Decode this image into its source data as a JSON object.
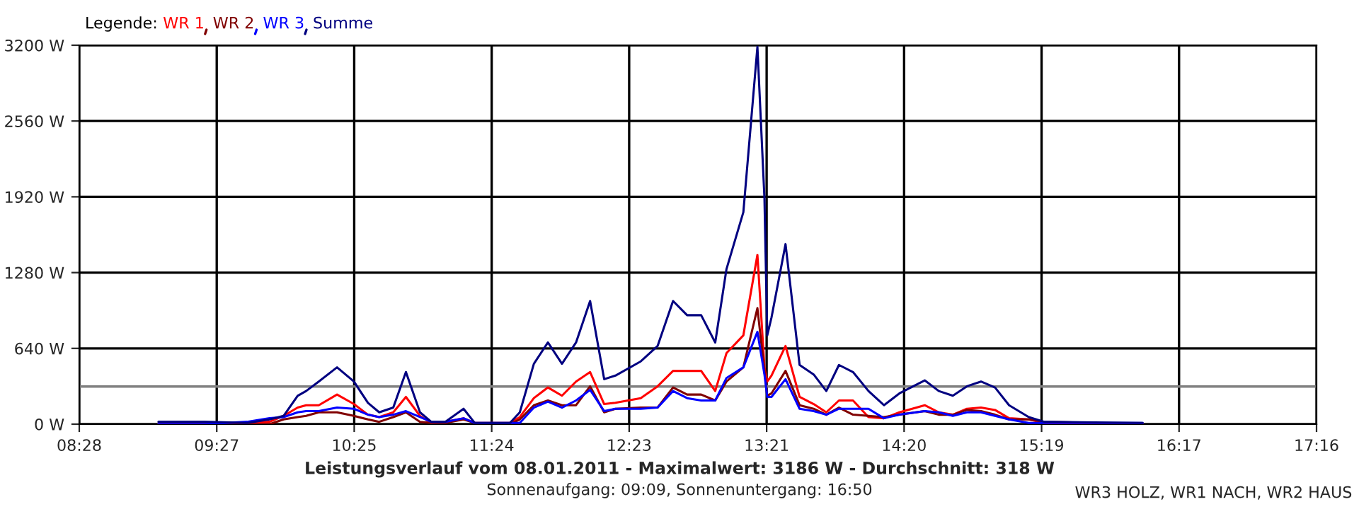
{
  "chart_data": {
    "type": "line",
    "title": "Leistungsverlauf vom 08.01.2011 - Maximalwert: 3186 W - Durchschnitt: 318 W",
    "subtitle": "Sonnenaufgang: 09:09, Sonnenuntergang: 16:50",
    "legend_title": "Legende:",
    "annotations": [
      "WR3 HOLZ, WR1 NACH, WR2 HAUS"
    ],
    "x": [
      9.03,
      9.36,
      9.66,
      9.82,
      9.92,
      10.02,
      10.08,
      10.17,
      10.3,
      10.42,
      10.52,
      10.6,
      10.7,
      10.79,
      10.89,
      10.97,
      11.07,
      11.2,
      11.28,
      11.53,
      11.6,
      11.7,
      11.8,
      11.9,
      12.0,
      12.1,
      12.2,
      12.28,
      12.46,
      12.58,
      12.69,
      12.79,
      12.89,
      12.99,
      13.07,
      13.19,
      13.29,
      13.34,
      13.36,
      13.39,
      13.49,
      13.59,
      13.69,
      13.78,
      13.87,
      13.97,
      14.08,
      14.19,
      14.3,
      14.48,
      14.58,
      14.68,
      14.78,
      14.88,
      14.98,
      15.08,
      15.22,
      15.33,
      16.03
    ],
    "series": [
      {
        "name": "WR 1",
        "color": "#ff0000",
        "values": [
          0,
          0,
          10,
          20,
          70,
          140,
          160,
          160,
          250,
          170,
          80,
          60,
          100,
          230,
          70,
          10,
          20,
          50,
          10,
          10,
          60,
          220,
          310,
          240,
          360,
          440,
          170,
          180,
          220,
          320,
          450,
          450,
          450,
          280,
          600,
          750,
          1430,
          480,
          360,
          410,
          660,
          230,
          170,
          100,
          200,
          200,
          60,
          50,
          100,
          160,
          100,
          80,
          130,
          140,
          120,
          50,
          40,
          10,
          0
        ]
      },
      {
        "name": "WR 2",
        "color": "#800000",
        "values": [
          0,
          0,
          0,
          0,
          40,
          60,
          70,
          100,
          100,
          70,
          40,
          20,
          60,
          100,
          20,
          10,
          10,
          40,
          10,
          0,
          40,
          160,
          200,
          160,
          160,
          320,
          100,
          130,
          140,
          140,
          310,
          250,
          250,
          200,
          360,
          480,
          980,
          450,
          240,
          260,
          450,
          160,
          130,
          80,
          140,
          80,
          70,
          60,
          80,
          110,
          80,
          80,
          120,
          110,
          80,
          40,
          40,
          20,
          0
        ]
      },
      {
        "name": "WR 3",
        "color": "#0000ff",
        "values": [
          0,
          0,
          20,
          50,
          60,
          100,
          110,
          110,
          140,
          130,
          80,
          60,
          80,
          110,
          60,
          20,
          20,
          50,
          10,
          10,
          10,
          140,
          190,
          140,
          200,
          290,
          110,
          130,
          130,
          140,
          280,
          220,
          200,
          200,
          390,
          480,
          780,
          420,
          230,
          230,
          380,
          130,
          110,
          80,
          130,
          130,
          130,
          50,
          80,
          110,
          100,
          70,
          100,
          100,
          70,
          40,
          10,
          10,
          10
        ]
      },
      {
        "name": "Summe",
        "color": "#000080",
        "values": [
          20,
          20,
          10,
          40,
          70,
          240,
          280,
          360,
          480,
          360,
          180,
          100,
          140,
          440,
          100,
          20,
          20,
          130,
          10,
          10,
          100,
          510,
          690,
          510,
          690,
          1040,
          380,
          410,
          530,
          660,
          1040,
          920,
          920,
          690,
          1310,
          1790,
          3186,
          1910,
          750,
          900,
          1520,
          500,
          420,
          280,
          500,
          440,
          280,
          160,
          260,
          370,
          280,
          240,
          320,
          360,
          310,
          160,
          60,
          20,
          10
        ]
      }
    ],
    "xlim": [
      8.4667,
      17.2667
    ],
    "xticks": [
      {
        "value": 8.4667,
        "label": "08:28"
      },
      {
        "value": 9.4444,
        "label": "09:27"
      },
      {
        "value": 10.4222,
        "label": "10:25"
      },
      {
        "value": 11.4,
        "label": "11:24"
      },
      {
        "value": 12.3778,
        "label": "12:23"
      },
      {
        "value": 13.3556,
        "label": "13:21"
      },
      {
        "value": 14.3333,
        "label": "14:20"
      },
      {
        "value": 15.3111,
        "label": "15:19"
      },
      {
        "value": 16.2889,
        "label": "16:17"
      },
      {
        "value": 17.2667,
        "label": "17:16"
      }
    ],
    "ylim": [
      0,
      3200
    ],
    "yticks": [
      {
        "value": 0,
        "label": "0 W"
      },
      {
        "value": 640,
        "label": "640 W"
      },
      {
        "value": 1280,
        "label": "1280 W"
      },
      {
        "value": 1920,
        "label": "1920 W"
      },
      {
        "value": 2560,
        "label": "2560 W"
      },
      {
        "value": 3200,
        "label": "3200 W"
      }
    ],
    "ref_lines": [
      {
        "axis": "y",
        "value": 318,
        "color": "#808080"
      }
    ],
    "grid": true,
    "legend": "top left"
  }
}
